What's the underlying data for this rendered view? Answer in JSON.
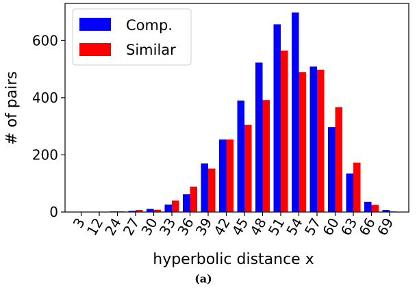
{
  "chart_data": {
    "type": "bar",
    "title": "",
    "xlabel": "hyperbolic distance x",
    "ylabel": "# of pairs",
    "ylim": [
      0,
      730
    ],
    "yticks": [
      0,
      200,
      400,
      600
    ],
    "grid": false,
    "legend_position": "top-left",
    "caption": "(a)",
    "categories": [
      "3",
      "12",
      "24",
      "27",
      "30",
      "33",
      "36",
      "39",
      "42",
      "45",
      "48",
      "51",
      "54",
      "57",
      "60",
      "63",
      "66",
      "69"
    ],
    "series": [
      {
        "name": "Comp.",
        "color": "#0000ff",
        "values": [
          1,
          1,
          2,
          4,
          11,
          26,
          62,
          170,
          254,
          390,
          523,
          657,
          698,
          509,
          297,
          135,
          36,
          7
        ]
      },
      {
        "name": "Similar",
        "color": "#ff0000",
        "values": [
          1,
          1,
          2,
          7,
          8,
          40,
          89,
          152,
          254,
          305,
          392,
          565,
          490,
          498,
          367,
          173,
          25,
          2
        ]
      }
    ]
  }
}
